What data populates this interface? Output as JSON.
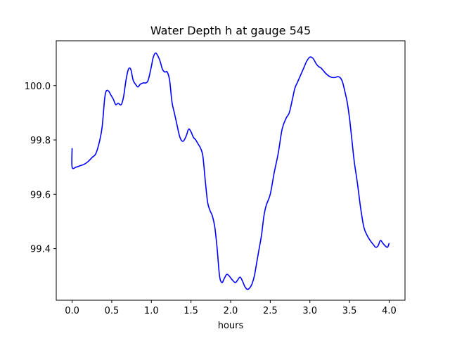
{
  "chart_data": {
    "type": "line",
    "title": "Water Depth h at gauge 545",
    "xlabel": "hours",
    "ylabel": "",
    "xlim": [
      -0.2,
      4.2
    ],
    "ylim": [
      99.21,
      100.165
    ],
    "xticks": [
      0.0,
      0.5,
      1.0,
      1.5,
      2.0,
      2.5,
      3.0,
      3.5,
      4.0
    ],
    "xtick_labels": [
      "0.0",
      "0.5",
      "1.0",
      "1.5",
      "2.0",
      "2.5",
      "3.0",
      "3.5",
      "4.0"
    ],
    "yticks": [
      99.4,
      99.6,
      99.8,
      100.0
    ],
    "ytick_labels": [
      "99.4",
      "99.6",
      "99.8",
      "100.0"
    ],
    "grid": false,
    "legend": "none",
    "series": [
      {
        "color": "#0000ff",
        "x": [
          0.0,
          0.0,
          0.05,
          0.1,
          0.15,
          0.2,
          0.25,
          0.3,
          0.35,
          0.38,
          0.41,
          0.43,
          0.46,
          0.49,
          0.52,
          0.55,
          0.58,
          0.62,
          0.65,
          0.68,
          0.71,
          0.74,
          0.77,
          0.8,
          0.83,
          0.86,
          0.9,
          0.93,
          0.96,
          1.0,
          1.02,
          1.05,
          1.08,
          1.11,
          1.14,
          1.17,
          1.2,
          1.23,
          1.26,
          1.29,
          1.32,
          1.36,
          1.4,
          1.44,
          1.47,
          1.5,
          1.53,
          1.56,
          1.59,
          1.62,
          1.65,
          1.68,
          1.71,
          1.74,
          1.77,
          1.8,
          1.83,
          1.86,
          1.89,
          1.92,
          1.95,
          1.98,
          2.02,
          2.06,
          2.09,
          2.12,
          2.15,
          2.18,
          2.21,
          2.24,
          2.27,
          2.3,
          2.33,
          2.36,
          2.39,
          2.42,
          2.45,
          2.5,
          2.55,
          2.6,
          2.65,
          2.7,
          2.74,
          2.78,
          2.81,
          2.84,
          2.87,
          2.9,
          2.93,
          2.96,
          3.0,
          3.04,
          3.08,
          3.11,
          3.14,
          3.17,
          3.2,
          3.24,
          3.28,
          3.32,
          3.35,
          3.38,
          3.41,
          3.44,
          3.47,
          3.5,
          3.53,
          3.56,
          3.6,
          3.64,
          3.68,
          3.72,
          3.76,
          3.8,
          3.83,
          3.86,
          3.89,
          3.92,
          3.95,
          3.98,
          4.0
        ],
        "y": [
          99.77,
          99.7,
          99.7,
          99.705,
          99.71,
          99.72,
          99.735,
          99.75,
          99.8,
          99.85,
          99.95,
          99.98,
          99.98,
          99.965,
          99.95,
          99.93,
          99.935,
          99.93,
          99.96,
          100.02,
          100.06,
          100.06,
          100.02,
          100.005,
          99.995,
          100.005,
          100.01,
          100.01,
          100.02,
          100.07,
          100.1,
          100.12,
          100.11,
          100.09,
          100.06,
          100.05,
          100.05,
          100.02,
          99.94,
          99.9,
          99.86,
          99.81,
          99.795,
          99.815,
          99.84,
          99.83,
          99.81,
          99.8,
          99.785,
          99.77,
          99.74,
          99.65,
          99.57,
          99.54,
          99.52,
          99.48,
          99.4,
          99.3,
          99.275,
          99.29,
          99.305,
          99.3,
          99.285,
          99.275,
          99.285,
          99.295,
          99.28,
          99.26,
          99.25,
          99.255,
          99.27,
          99.3,
          99.35,
          99.4,
          99.45,
          99.52,
          99.56,
          99.6,
          99.68,
          99.75,
          99.84,
          99.88,
          99.9,
          99.95,
          99.99,
          100.01,
          100.03,
          100.05,
          100.07,
          100.09,
          100.105,
          100.1,
          100.08,
          100.07,
          100.065,
          100.055,
          100.045,
          100.035,
          100.03,
          100.03,
          100.033,
          100.03,
          100.015,
          99.98,
          99.94,
          99.88,
          99.8,
          99.72,
          99.64,
          99.55,
          99.48,
          99.45,
          99.43,
          99.415,
          99.405,
          99.41,
          99.43,
          99.42,
          99.41,
          99.405,
          99.42
        ]
      }
    ]
  }
}
